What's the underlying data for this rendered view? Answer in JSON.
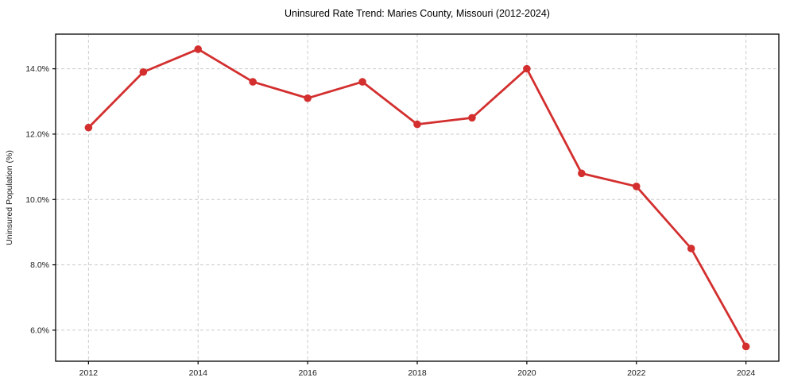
{
  "chart_data": {
    "type": "line",
    "title": "Uninsured Rate Trend: Maries County, Missouri (2012-2024)",
    "xlabel": "",
    "ylabel": "Uninsured Population (%)",
    "x": [
      2012,
      2013,
      2014,
      2015,
      2016,
      2017,
      2018,
      2019,
      2020,
      2021,
      2022,
      2023,
      2024
    ],
    "series": [
      {
        "name": "Uninsured Rate",
        "values": [
          12.2,
          13.9,
          14.6,
          13.6,
          13.1,
          13.6,
          12.3,
          12.5,
          14.0,
          10.8,
          10.4,
          8.5,
          5.5
        ]
      }
    ],
    "xlim": [
      2011.4,
      2024.6
    ],
    "ylim": [
      5.05,
      15.06
    ],
    "x_ticks": [
      2012,
      2014,
      2016,
      2018,
      2020,
      2022,
      2024
    ],
    "x_tick_labels": [
      "2012",
      "2014",
      "2016",
      "2018",
      "2020",
      "2022",
      "2024"
    ],
    "y_ticks": [
      6,
      8,
      10,
      12,
      14
    ],
    "y_tick_labels": [
      "6.0%",
      "8.0%",
      "10.0%",
      "12.0%",
      "14.0%"
    ],
    "grid": true,
    "legend": "none",
    "colors": {
      "line": "#d32f2f",
      "marker": "#d32f2f",
      "grid": "#cccccc",
      "axis": "#000000",
      "text": "#1a1a1a",
      "background": "#ffffff"
    }
  }
}
